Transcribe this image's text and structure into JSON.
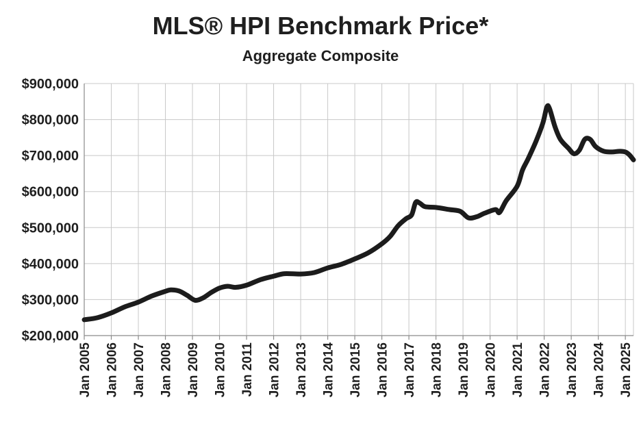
{
  "chart_data": {
    "type": "line",
    "title": "MLS® HPI Benchmark Price*",
    "subtitle": "Aggregate Composite",
    "xlabel": "",
    "ylabel": "",
    "ylim": [
      200000,
      900000
    ],
    "y_ticks": [
      {
        "value": 200000,
        "label": "$200,000"
      },
      {
        "value": 300000,
        "label": "$300,000"
      },
      {
        "value": 400000,
        "label": "$400,000"
      },
      {
        "value": 500000,
        "label": "$500,000"
      },
      {
        "value": 600000,
        "label": "$600,000"
      },
      {
        "value": 700000,
        "label": "$700,000"
      },
      {
        "value": 800000,
        "label": "$800,000"
      },
      {
        "value": 900000,
        "label": "$900,000"
      }
    ],
    "x_range": [
      2005.0,
      2025.3
    ],
    "x_ticks": [
      {
        "value": 2005,
        "label": "Jan 2005"
      },
      {
        "value": 2006,
        "label": "Jan 2006"
      },
      {
        "value": 2007,
        "label": "Jan 2007"
      },
      {
        "value": 2008,
        "label": "Jan 2008"
      },
      {
        "value": 2009,
        "label": "Jan 2009"
      },
      {
        "value": 2010,
        "label": "Jan 2010"
      },
      {
        "value": 2011,
        "label": "Jan 2011"
      },
      {
        "value": 2012,
        "label": "Jan 2012"
      },
      {
        "value": 2013,
        "label": "Jan 2013"
      },
      {
        "value": 2014,
        "label": "Jan 2014"
      },
      {
        "value": 2015,
        "label": "Jan 2015"
      },
      {
        "value": 2016,
        "label": "Jan 2016"
      },
      {
        "value": 2017,
        "label": "Jan 2017"
      },
      {
        "value": 2018,
        "label": "Jan 2018"
      },
      {
        "value": 2019,
        "label": "Jan 2019"
      },
      {
        "value": 2020,
        "label": "Jan 2020"
      },
      {
        "value": 2021,
        "label": "Jan 2021"
      },
      {
        "value": 2022,
        "label": "Jan 2022"
      },
      {
        "value": 2023,
        "label": "Jan 2023"
      },
      {
        "value": 2024,
        "label": "Jan 2024"
      },
      {
        "value": 2025,
        "label": "Jan 2025"
      }
    ],
    "grid": true,
    "series": [
      {
        "name": "MLS® HPI Benchmark Price",
        "color": "#1c1c1c",
        "points": [
          [
            2005.0,
            244000
          ],
          [
            2005.5,
            250000
          ],
          [
            2006.0,
            263000
          ],
          [
            2006.5,
            280000
          ],
          [
            2007.0,
            293000
          ],
          [
            2007.5,
            310000
          ],
          [
            2008.0,
            323000
          ],
          [
            2008.2,
            327000
          ],
          [
            2008.5,
            324000
          ],
          [
            2008.8,
            312000
          ],
          [
            2009.1,
            298000
          ],
          [
            2009.4,
            305000
          ],
          [
            2009.7,
            320000
          ],
          [
            2010.0,
            332000
          ],
          [
            2010.3,
            337000
          ],
          [
            2010.6,
            334000
          ],
          [
            2011.0,
            340000
          ],
          [
            2011.5,
            355000
          ],
          [
            2012.0,
            365000
          ],
          [
            2012.4,
            372000
          ],
          [
            2013.0,
            371000
          ],
          [
            2013.5,
            375000
          ],
          [
            2014.0,
            388000
          ],
          [
            2014.5,
            398000
          ],
          [
            2015.0,
            413000
          ],
          [
            2015.5,
            430000
          ],
          [
            2016.0,
            455000
          ],
          [
            2016.3,
            475000
          ],
          [
            2016.6,
            505000
          ],
          [
            2016.9,
            525000
          ],
          [
            2017.1,
            535000
          ],
          [
            2017.25,
            570000
          ],
          [
            2017.4,
            568000
          ],
          [
            2017.6,
            558000
          ],
          [
            2018.0,
            556000
          ],
          [
            2018.5,
            550000
          ],
          [
            2018.9,
            545000
          ],
          [
            2019.2,
            527000
          ],
          [
            2019.5,
            530000
          ],
          [
            2019.8,
            540000
          ],
          [
            2020.2,
            550000
          ],
          [
            2020.35,
            542000
          ],
          [
            2020.6,
            575000
          ],
          [
            2021.0,
            615000
          ],
          [
            2021.2,
            660000
          ],
          [
            2021.4,
            690000
          ],
          [
            2021.7,
            740000
          ],
          [
            2021.95,
            790000
          ],
          [
            2022.1,
            835000
          ],
          [
            2022.2,
            830000
          ],
          [
            2022.4,
            780000
          ],
          [
            2022.6,
            745000
          ],
          [
            2022.9,
            720000
          ],
          [
            2023.1,
            705000
          ],
          [
            2023.3,
            715000
          ],
          [
            2023.5,
            745000
          ],
          [
            2023.7,
            745000
          ],
          [
            2023.9,
            725000
          ],
          [
            2024.2,
            712000
          ],
          [
            2024.5,
            710000
          ],
          [
            2024.8,
            712000
          ],
          [
            2025.0,
            710000
          ],
          [
            2025.15,
            702000
          ],
          [
            2025.3,
            688000
          ]
        ]
      }
    ]
  }
}
